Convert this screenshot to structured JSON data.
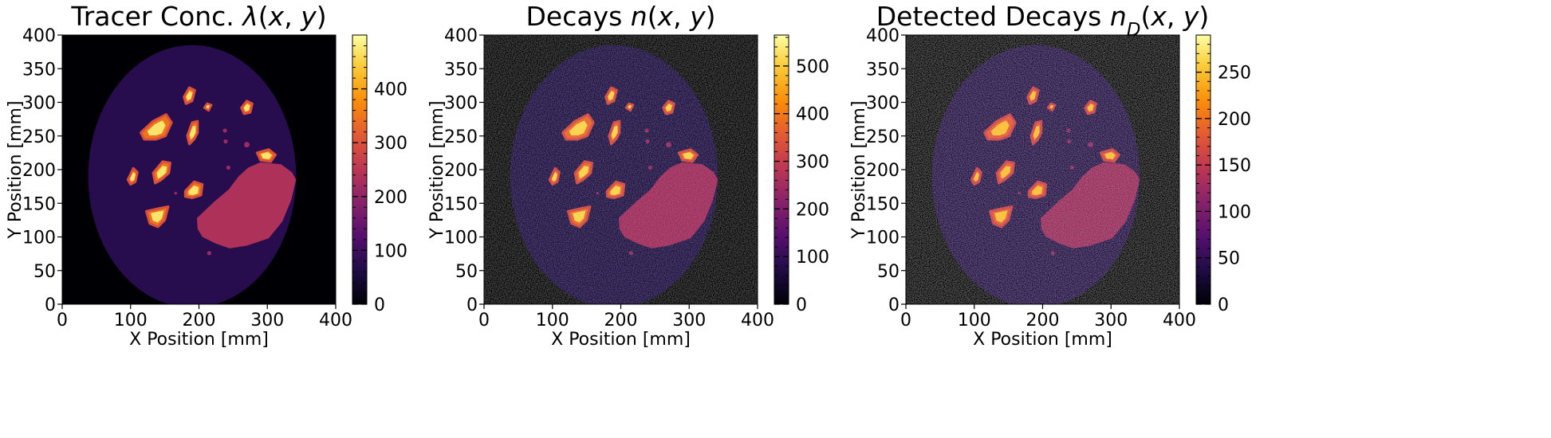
{
  "chart_data": [
    {
      "type": "heatmap",
      "title": "Tracer Conc. λ(x,y)",
      "title_parts": [
        {
          "t": "Tracer Conc. "
        },
        {
          "t": "λ",
          "i": true
        },
        {
          "t": "("
        },
        {
          "t": "x",
          "i": true
        },
        {
          "t": ", "
        },
        {
          "t": "y",
          "i": true
        },
        {
          "t": ")"
        }
      ],
      "xlabel": "X Position [mm]",
      "ylabel": "Y Position [mm]",
      "xlim": [
        0,
        400
      ],
      "ylim": [
        0,
        400
      ],
      "xticks": [
        0,
        100,
        200,
        300,
        400
      ],
      "yticks": [
        0,
        50,
        100,
        150,
        200,
        250,
        300,
        350,
        400
      ],
      "colormap": "inferno",
      "colorbar": {
        "range": [
          0,
          500
        ],
        "ticks": [
          0,
          100,
          200,
          300,
          400
        ]
      },
      "regions": {
        "background_level": 75,
        "large_lesion_level": 235,
        "hot_spot_level": 480
      },
      "noise": 0
    },
    {
      "type": "heatmap",
      "title": "Decays n(x,y)",
      "title_parts": [
        {
          "t": "Decays "
        },
        {
          "t": "n",
          "i": true
        },
        {
          "t": "("
        },
        {
          "t": "x",
          "i": true
        },
        {
          "t": ", "
        },
        {
          "t": "y",
          "i": true
        },
        {
          "t": ")"
        }
      ],
      "xlabel": "X Position [mm]",
      "ylabel": "Y Position [mm]",
      "xlim": [
        0,
        400
      ],
      "ylim": [
        0,
        400
      ],
      "xticks": [
        0,
        100,
        200,
        300,
        400
      ],
      "yticks": [
        0,
        50,
        100,
        150,
        200,
        250,
        300,
        350,
        400
      ],
      "colormap": "inferno",
      "colorbar": {
        "range": [
          0,
          565
        ],
        "ticks": [
          0,
          100,
          200,
          300,
          400,
          500
        ]
      },
      "regions": {
        "background_level": 80,
        "large_lesion_level": 250,
        "hot_spot_level": 520
      },
      "noise": 0.12
    },
    {
      "type": "heatmap",
      "title": "Detected Decays nD(x,y)",
      "title_parts": [
        {
          "t": "Detected Decays "
        },
        {
          "t": "n",
          "i": true
        },
        {
          "t": "D",
          "i": true,
          "sub": true
        },
        {
          "t": "("
        },
        {
          "t": "x",
          "i": true
        },
        {
          "t": ", "
        },
        {
          "t": "y",
          "i": true
        },
        {
          "t": ")"
        }
      ],
      "xlabel": "X Position [mm]",
      "ylabel": "Y Position [mm]",
      "xlim": [
        0,
        400
      ],
      "ylim": [
        0,
        400
      ],
      "xticks": [
        0,
        100,
        200,
        300,
        400
      ],
      "yticks": [
        0,
        50,
        100,
        150,
        200,
        250,
        300,
        350,
        400
      ],
      "colormap": "inferno",
      "colorbar": {
        "range": [
          0,
          290
        ],
        "ticks": [
          0,
          50,
          100,
          150,
          200,
          250
        ]
      },
      "regions": {
        "background_level": 45,
        "large_lesion_level": 125,
        "hot_spot_level": 255
      },
      "noise": 0.18
    }
  ],
  "phantom": {
    "body_ellipse": {
      "cx": 190,
      "cy": 190,
      "rx": 152,
      "ry": 195
    },
    "large_lesion_polygon": [
      [
        197,
        128
      ],
      [
        222,
        152
      ],
      [
        243,
        170
      ],
      [
        258,
        190
      ],
      [
        272,
        203
      ],
      [
        290,
        211
      ],
      [
        320,
        208
      ],
      [
        336,
        196
      ],
      [
        342,
        185
      ],
      [
        335,
        155
      ],
      [
        322,
        123
      ],
      [
        302,
        98
      ],
      [
        270,
        87
      ],
      [
        245,
        83
      ],
      [
        225,
        90
      ],
      [
        205,
        100
      ],
      [
        198,
        112
      ]
    ],
    "hot_spots_polygons": [
      [
        [
          115,
          255
        ],
        [
          133,
          272
        ],
        [
          152,
          282
        ],
        [
          160,
          270
        ],
        [
          151,
          250
        ],
        [
          137,
          245
        ],
        [
          120,
          245
        ]
      ],
      [
        [
          178,
          308
        ],
        [
          186,
          322
        ],
        [
          194,
          318
        ],
        [
          190,
          302
        ],
        [
          181,
          298
        ]
      ],
      [
        [
          208,
          292
        ],
        [
          212,
          298
        ],
        [
          218,
          296
        ],
        [
          214,
          288
        ]
      ],
      [
        [
          262,
          292
        ],
        [
          270,
          302
        ],
        [
          278,
          298
        ],
        [
          275,
          285
        ],
        [
          266,
          283
        ]
      ],
      [
        [
          183,
          250
        ],
        [
          190,
          270
        ],
        [
          198,
          272
        ],
        [
          198,
          255
        ],
        [
          193,
          245
        ],
        [
          186,
          238
        ]
      ],
      [
        [
          96,
          185
        ],
        [
          104,
          202
        ],
        [
          110,
          196
        ],
        [
          107,
          182
        ],
        [
          100,
          178
        ]
      ],
      [
        [
          133,
          195
        ],
        [
          147,
          212
        ],
        [
          158,
          210
        ],
        [
          156,
          195
        ],
        [
          145,
          185
        ],
        [
          136,
          180
        ]
      ],
      [
        [
          180,
          168
        ],
        [
          193,
          182
        ],
        [
          205,
          178
        ],
        [
          203,
          162
        ],
        [
          190,
          158
        ],
        [
          180,
          160
        ]
      ],
      [
        [
          123,
          138
        ],
        [
          140,
          142
        ],
        [
          155,
          145
        ],
        [
          150,
          125
        ],
        [
          140,
          115
        ],
        [
          128,
          120
        ]
      ],
      [
        [
          285,
          225
        ],
        [
          302,
          230
        ],
        [
          312,
          222
        ],
        [
          305,
          212
        ],
        [
          290,
          214
        ]
      ]
    ],
    "small_dots": [
      [
        270,
        237,
        4
      ],
      [
        238,
        258,
        3
      ],
      [
        239,
        242,
        3
      ],
      [
        243,
        203,
        3
      ],
      [
        166,
        165,
        2
      ],
      [
        215,
        76,
        3
      ]
    ]
  }
}
